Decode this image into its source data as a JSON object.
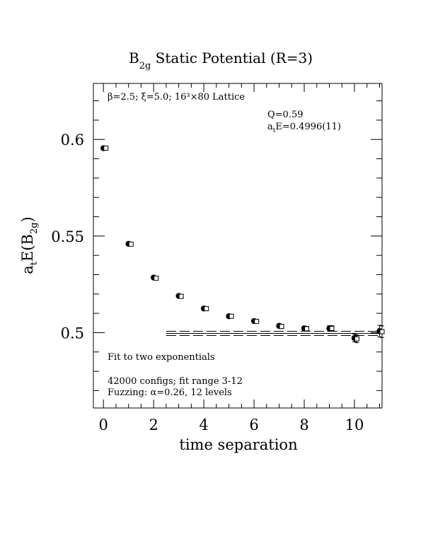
{
  "chart_data": {
    "type": "scatter",
    "title_main": "B",
    "title_sub": "2g",
    "title_rest": " Static Potential (R=3)",
    "xlabel": "time separation",
    "ylabel_main": "a",
    "ylabel_sub1": "t",
    "ylabel_mid": "E(B",
    "ylabel_sub2": "2g",
    "ylabel_end": ")",
    "xlim": [
      -0.4,
      11.1
    ],
    "ylim": [
      0.461,
      0.629
    ],
    "x_major_ticks": [
      0,
      2,
      4,
      6,
      8,
      10
    ],
    "x_tick_labels": [
      "0",
      "2",
      "4",
      "6",
      "8",
      "10"
    ],
    "y_major_ticks": [
      0.5,
      0.55,
      0.6
    ],
    "y_tick_labels": [
      "0.5",
      "0.55",
      "0.6"
    ],
    "grid": false,
    "annotations": {
      "lattice": "β=2.5; ξ=5.0; 16³×80 Lattice",
      "q_value": "Q=0.59",
      "energy_main": "a",
      "energy_sub": "t",
      "energy_rest": "E=0.4996(11)",
      "fit_label": "Fit to two exponentials",
      "configs": "42000 configs; fit range 3-12",
      "fuzzing": "Fuzzing: α=0.26, 12 levels"
    },
    "series": [
      {
        "marker": "filled-circle",
        "x": [
          0,
          1,
          2,
          3,
          4,
          5,
          6,
          7,
          8,
          9,
          10,
          11
        ],
        "values": [
          0.5955,
          0.546,
          0.5285,
          0.519,
          0.5125,
          0.5085,
          0.506,
          0.5035,
          0.5022,
          0.5022,
          0.4972,
          0.5008
        ],
        "errors": [
          0.0005,
          0.0006,
          0.0007,
          0.0008,
          0.0009,
          0.001,
          0.001,
          0.0011,
          0.0012,
          0.0014,
          0.002,
          0.003
        ]
      },
      {
        "marker": "open-square",
        "x": [
          0.1,
          1.1,
          2.1,
          3.1,
          4.1,
          5.1,
          6.1,
          7.1,
          8.1,
          9.1,
          10.1,
          11.1
        ],
        "values": [
          0.5955,
          0.5458,
          0.5282,
          0.5188,
          0.5124,
          0.5085,
          0.5058,
          0.5032,
          0.502,
          0.5022,
          0.4968,
          0.5005
        ],
        "errors": [
          0.0005,
          0.0006,
          0.0007,
          0.0008,
          0.0009,
          0.001,
          0.001,
          0.0011,
          0.0012,
          0.0014,
          0.002,
          0.003
        ]
      }
    ],
    "fit": {
      "x_range": [
        2.5,
        11
      ],
      "center": 0.4996,
      "error": 0.0011
    }
  }
}
